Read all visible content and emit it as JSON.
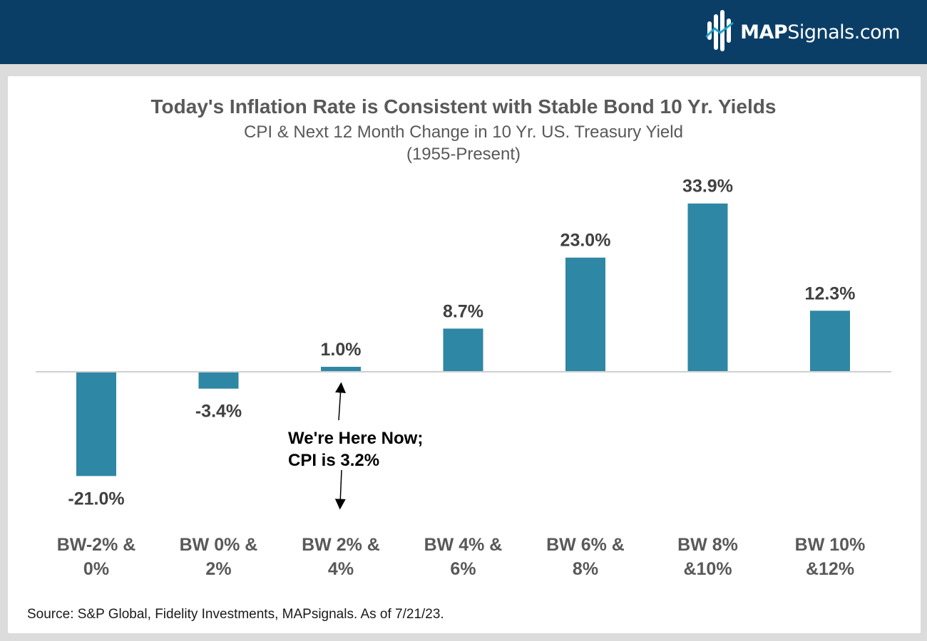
{
  "brand": {
    "name_bold": "MAP",
    "name_rest": "Signals.com",
    "header_color": "#0b3e66"
  },
  "chart_data": {
    "type": "bar",
    "title": "Today's Inflation Rate is Consistent with Stable Bond 10 Yr. Yields",
    "subtitle": "CPI & Next 12 Month Change in 10 Yr. US. Treasury Yield",
    "subtitle2": "(1955-Present)",
    "categories": [
      [
        "BW-2% &",
        "0%"
      ],
      [
        "BW 0% &",
        "2%"
      ],
      [
        "BW 2% &",
        "4%"
      ],
      [
        "BW 4% &",
        "6%"
      ],
      [
        "BW 6% &",
        "8%"
      ],
      [
        "BW 8%",
        "&10%"
      ],
      [
        "BW 10%",
        "&12%"
      ]
    ],
    "values": [
      -21.0,
      -3.4,
      1.0,
      8.7,
      23.0,
      33.9,
      12.3
    ],
    "value_labels": [
      "-21.0%",
      "-3.4%",
      "1.0%",
      "8.7%",
      "23.0%",
      "33.9%",
      "12.3%"
    ],
    "ylim": [
      -25,
      38
    ],
    "grid": false,
    "bar_color": "#2e87a4",
    "axis_color": "#d0d0d0",
    "annotation": {
      "line1": "We're Here Now;",
      "line2": "CPI is 3.2%",
      "category_index": 2
    },
    "source": "Source: S&P Global, Fidelity Investments, MAPsignals. As of 7/21/23."
  }
}
